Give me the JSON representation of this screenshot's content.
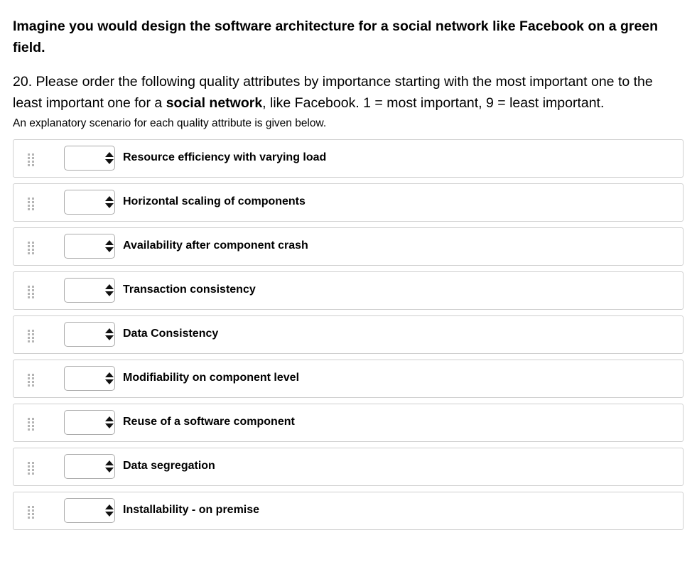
{
  "intro": "Imagine you would design the software architecture for a social network like Facebook on a green field.",
  "question": {
    "number_prefix": "20. Please order the following quality attributes by importance starting with the most important one to the least important one for a ",
    "emphasis": "social network",
    "suffix": ", like Facebook. 1 = most important, 9 = least important."
  },
  "hint": "An explanatory scenario for each quality attribute is given below.",
  "items": [
    {
      "label": "Resource efficiency with varying load",
      "rank": ""
    },
    {
      "label": "Horizontal scaling of components",
      "rank": ""
    },
    {
      "label": "Availability after component crash",
      "rank": ""
    },
    {
      "label": "Transaction consistency",
      "rank": ""
    },
    {
      "label": "Data Consistency",
      "rank": ""
    },
    {
      "label": "Modifiability on component level",
      "rank": ""
    },
    {
      "label": "Reuse of a software component",
      "rank": ""
    },
    {
      "label": "Data segregation",
      "rank": ""
    },
    {
      "label": "Installability - on premise",
      "rank": ""
    }
  ],
  "icons": {
    "drag": "drag-handle-icon",
    "select_arrows": "up-down-arrows-icon"
  },
  "colors": {
    "border": "#cfcfcf",
    "handle": "#b5b5b5",
    "arrow": "#111111"
  }
}
